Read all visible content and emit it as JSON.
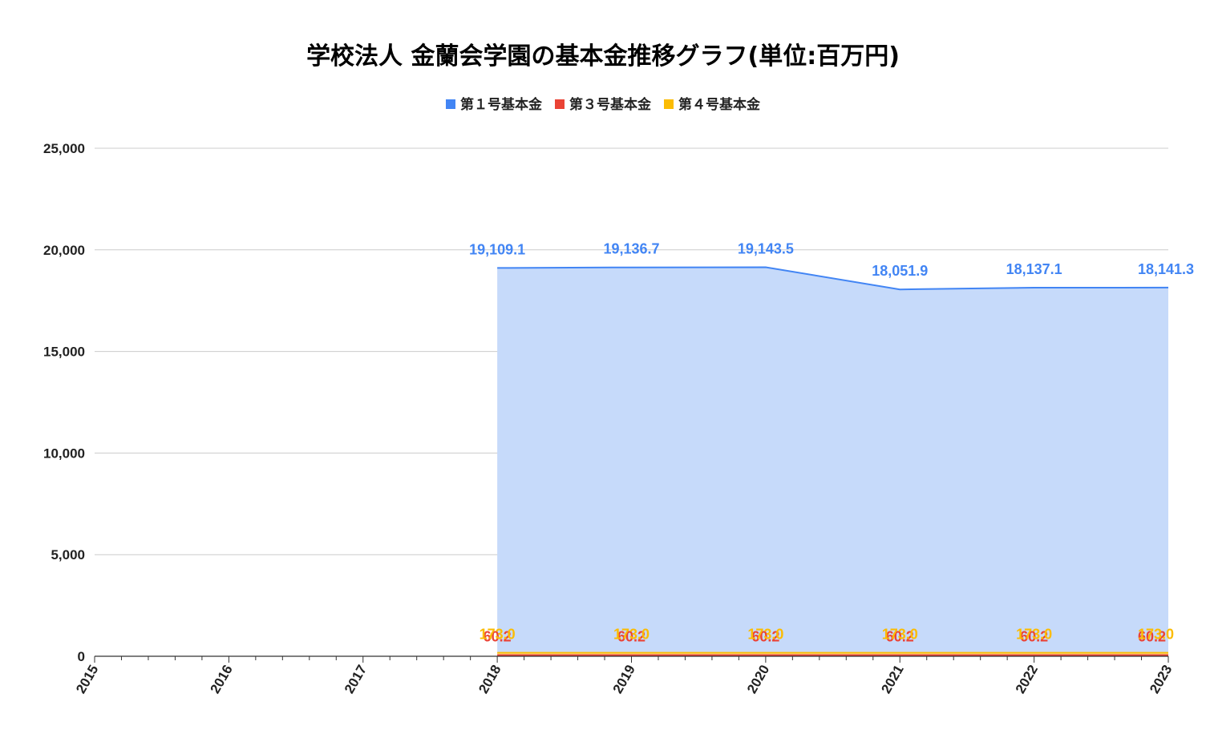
{
  "chart_data": {
    "type": "area",
    "title": "学校法人 金蘭会学園の基本金推移グラフ(単位:百万円)",
    "x": [
      "2015",
      "2016",
      "2017",
      "2018",
      "2019",
      "2020",
      "2021",
      "2022",
      "2023"
    ],
    "ylim": [
      0,
      25000
    ],
    "yticks": [
      "0",
      "5,000",
      "10,000",
      "15,000",
      "20,000",
      "25,000"
    ],
    "ytick_values": [
      0,
      5000,
      10000,
      15000,
      20000,
      25000
    ],
    "grid": true,
    "legend_position": "top",
    "series": [
      {
        "name": "第１号基本金",
        "color": "#4285f4",
        "fill": "#c6dafa",
        "values": [
          null,
          null,
          null,
          19109.1,
          19136.7,
          19143.5,
          18051.9,
          18137.1,
          18141.3
        ],
        "labels": [
          "",
          "",
          "",
          "19,109.1",
          "19,136.7",
          "19,143.5",
          "18,051.9",
          "18,137.1",
          "18,141.3"
        ]
      },
      {
        "name": "第３号基本金",
        "color": "#ea4335",
        "fill": "#f9c9c4",
        "values": [
          null,
          null,
          null,
          60.2,
          60.2,
          60.2,
          60.2,
          60.2,
          60.2
        ],
        "labels": [
          "",
          "",
          "",
          "60.2",
          "60.2",
          "60.2",
          "60.2",
          "60.2",
          "60.2"
        ]
      },
      {
        "name": "第４号基本金",
        "color": "#fbbc04",
        "fill": "#fdeaa6",
        "values": [
          null,
          null,
          null,
          173.0,
          173.0,
          173.0,
          173.0,
          173.0,
          173.0
        ],
        "labels": [
          "",
          "",
          "",
          "173.0",
          "173.0",
          "173.0",
          "173.0",
          "173.0",
          "173.0"
        ]
      }
    ]
  }
}
